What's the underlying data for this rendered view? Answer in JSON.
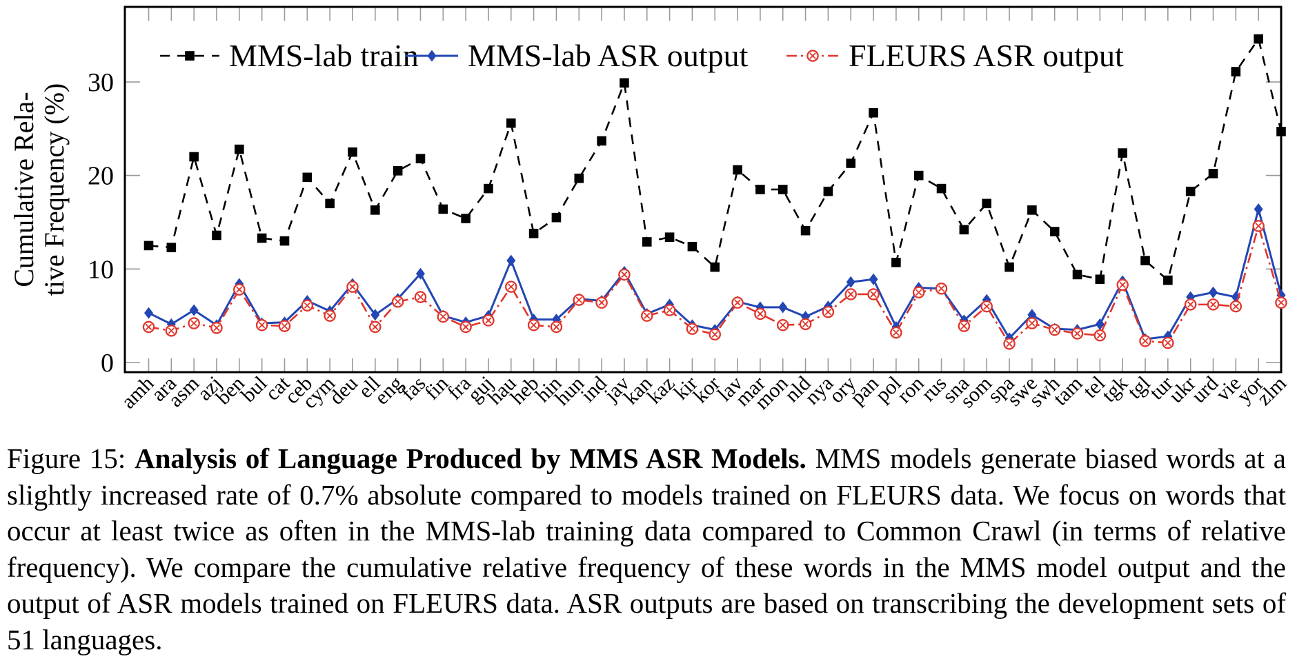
{
  "figure": {
    "caption_prefix": "Figure 15: ",
    "caption_bold": "Analysis of Language Produced by MMS ASR Models.",
    "caption_rest": " MMS models generate biased words at a slightly increased rate of 0.7% absolute compared to models trained on FLEURS data. We focus on words that occur at least twice as often in the MMS-lab training data compared to Common Crawl (in terms of relative frequency). We compare the cumulative relative frequency of these words in the MMS model output and the output of ASR models trained on FLEURS data. ASR outputs are based on transcribing the development sets of 51 languages."
  },
  "chart_data": {
    "type": "line",
    "title": "",
    "xlabel": "",
    "ylabel_lines": [
      "Cumulative Rela-",
      "tive Frequency (%)"
    ],
    "ylim": [
      0,
      38
    ],
    "yticks": [
      0,
      10,
      20,
      30
    ],
    "grid": false,
    "legend_position": "top-inside",
    "tick_color": "#999999",
    "axis_color": "#000000",
    "categories": [
      "amh",
      "ara",
      "asm",
      "azj",
      "ben",
      "bul",
      "cat",
      "ceb",
      "cym",
      "deu",
      "ell",
      "eng",
      "fas",
      "fin",
      "fra",
      "guj",
      "hau",
      "heb",
      "hin",
      "hun",
      "ind",
      "jav",
      "kan",
      "kaz",
      "kir",
      "kor",
      "lav",
      "mar",
      "mon",
      "nld",
      "nya",
      "ory",
      "pan",
      "pol",
      "ron",
      "rus",
      "sna",
      "som",
      "spa",
      "swe",
      "swh",
      "tam",
      "tel",
      "tgk",
      "tgl",
      "tur",
      "ukr",
      "urd",
      "vie",
      "yor",
      "zlm"
    ],
    "series": [
      {
        "name": "MMS-lab train",
        "color": "#000000",
        "line": "dashed",
        "marker": "square",
        "values": [
          12.5,
          12.3,
          22.0,
          13.6,
          22.8,
          13.3,
          13.0,
          19.8,
          17.0,
          22.5,
          16.3,
          20.5,
          21.8,
          16.4,
          15.4,
          18.6,
          25.6,
          13.8,
          15.5,
          19.7,
          23.7,
          29.9,
          12.9,
          13.4,
          12.4,
          10.2,
          20.6,
          18.5,
          18.5,
          14.1,
          18.3,
          21.3,
          26.7,
          10.7,
          20.0,
          18.6,
          14.2,
          17.0,
          10.2,
          16.3,
          14.0,
          9.4,
          8.9,
          22.4,
          10.9,
          8.8,
          18.3,
          20.2,
          31.1,
          34.6,
          24.7
        ]
      },
      {
        "name": "MMS-lab ASR output",
        "color": "#2346b4",
        "line": "solid",
        "marker": "diamond",
        "values": [
          5.3,
          4.1,
          5.6,
          4.0,
          8.4,
          4.2,
          4.3,
          6.6,
          5.5,
          8.4,
          5.1,
          6.8,
          9.5,
          5.0,
          4.3,
          5.0,
          10.9,
          4.6,
          4.6,
          6.8,
          6.6,
          9.7,
          5.2,
          6.2,
          4.0,
          3.5,
          6.5,
          5.9,
          5.9,
          4.9,
          6.0,
          8.6,
          8.9,
          3.8,
          8.0,
          7.9,
          4.5,
          6.7,
          2.6,
          5.1,
          3.6,
          3.5,
          4.1,
          8.7,
          2.5,
          2.8,
          7.0,
          7.5,
          7.0,
          16.4,
          7.2
        ]
      },
      {
        "name": "FLEURS ASR output",
        "color": "#e0352b",
        "line": "dashdot",
        "marker": "circle-x",
        "values": [
          3.8,
          3.4,
          4.2,
          3.7,
          7.8,
          4.0,
          3.9,
          6.1,
          5.0,
          8.1,
          3.8,
          6.5,
          7.0,
          4.9,
          3.8,
          4.5,
          8.1,
          4.0,
          3.8,
          6.7,
          6.4,
          9.4,
          5.0,
          5.6,
          3.6,
          3.0,
          6.4,
          5.2,
          4.0,
          4.1,
          5.4,
          7.3,
          7.3,
          3.2,
          7.5,
          7.9,
          3.9,
          6.0,
          2.0,
          4.2,
          3.5,
          3.1,
          2.9,
          8.3,
          2.3,
          2.1,
          6.2,
          6.2,
          6.0,
          14.6,
          6.4
        ]
      }
    ]
  }
}
